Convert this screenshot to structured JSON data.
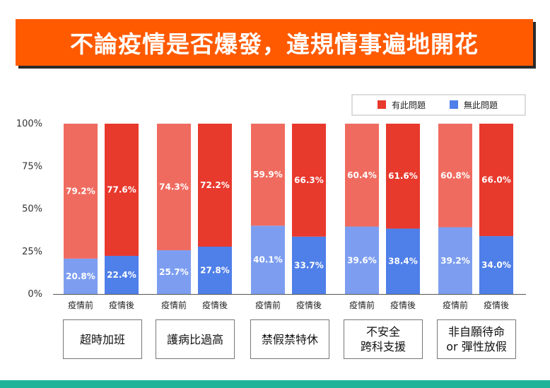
{
  "title": "不論疫情是否爆發，違規情事遍地開花",
  "legend": [
    {
      "label": "有此問題",
      "color": "#e8392d"
    },
    {
      "label": "無此問題",
      "color": "#4f7fe8"
    }
  ],
  "colors": {
    "red_before": "#f06b5f",
    "red_after": "#e8392d",
    "blue_before": "#7d9ef0",
    "blue_after": "#4f7fe8"
  },
  "chart_data": {
    "type": "bar",
    "stacked": true,
    "y_ticks": [
      "0%",
      "25%",
      "50%",
      "75%",
      "100%"
    ],
    "ylim": [
      0,
      100
    ],
    "grid": false,
    "legend_position": "top-right",
    "groups": [
      {
        "name": "超時加班",
        "bars": [
          {
            "label": "疫情前",
            "has": 79.2,
            "no": 20.8,
            "has_label": "79.2%",
            "no_label": "20.8%"
          },
          {
            "label": "疫情後",
            "has": 77.6,
            "no": 22.4,
            "has_label": "77.6%",
            "no_label": "22.4%"
          }
        ]
      },
      {
        "name": "護病比過高",
        "bars": [
          {
            "label": "疫情前",
            "has": 74.3,
            "no": 25.7,
            "has_label": "74.3%",
            "no_label": "25.7%"
          },
          {
            "label": "疫情後",
            "has": 72.2,
            "no": 27.8,
            "has_label": "72.2%",
            "no_label": "27.8%"
          }
        ]
      },
      {
        "name": "禁假禁特休",
        "bars": [
          {
            "label": "疫情前",
            "has": 59.9,
            "no": 40.1,
            "has_label": "59.9%",
            "no_label": "40.1%"
          },
          {
            "label": "疫情後",
            "has": 66.3,
            "no": 33.7,
            "has_label": "66.3%",
            "no_label": "33.7%"
          }
        ]
      },
      {
        "name": "不安全\n跨科支援",
        "bars": [
          {
            "label": "疫情前",
            "has": 60.4,
            "no": 39.6,
            "has_label": "60.4%",
            "no_label": "39.6%"
          },
          {
            "label": "疫情後",
            "has": 61.6,
            "no": 38.4,
            "has_label": "61.6%",
            "no_label": "38.4%"
          }
        ]
      },
      {
        "name": "非自願待命\nor 彈性放假",
        "bars": [
          {
            "label": "疫情前",
            "has": 60.8,
            "no": 39.2,
            "has_label": "60.8%",
            "no_label": "39.2%"
          },
          {
            "label": "疫情後",
            "has": 66.0,
            "no": 34.0,
            "has_label": "66.0%",
            "no_label": "34.0%"
          }
        ]
      }
    ]
  }
}
